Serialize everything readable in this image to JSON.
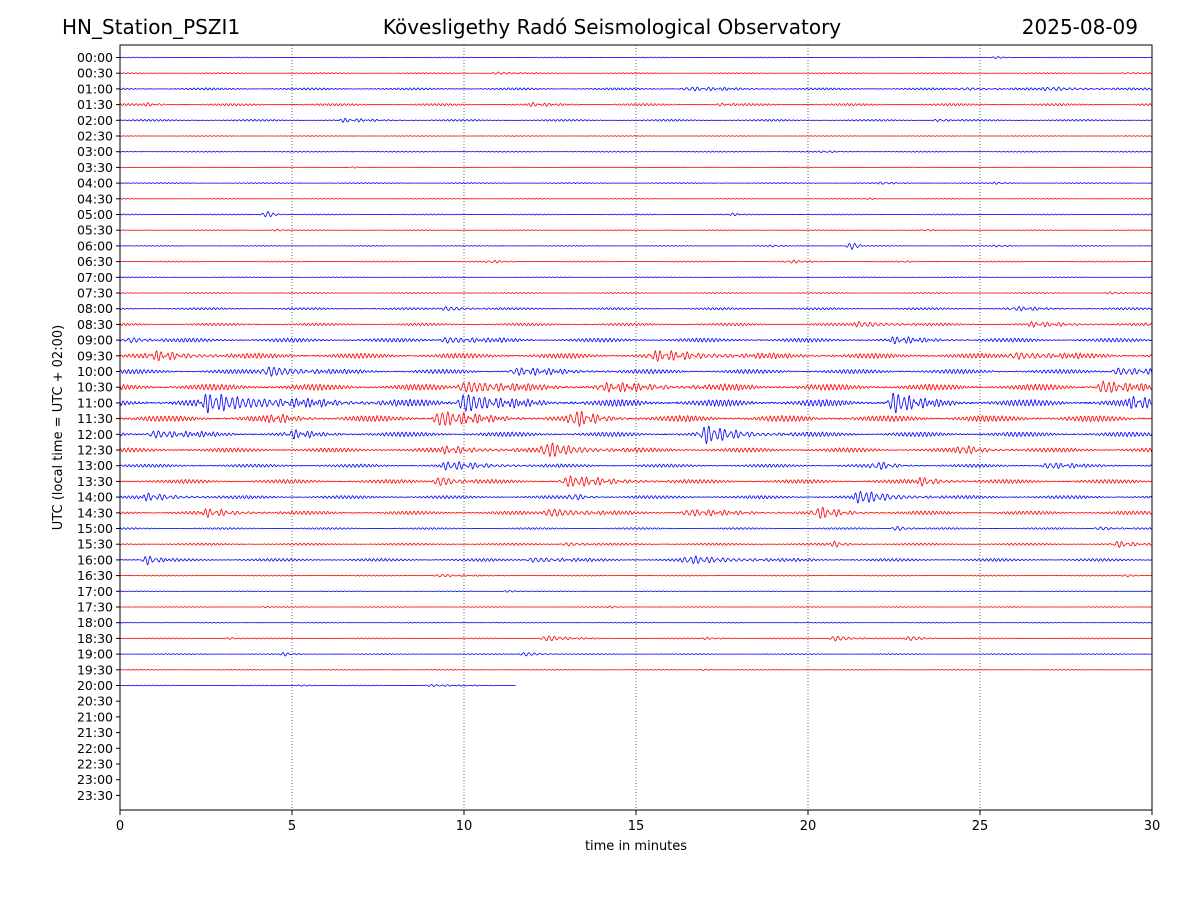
{
  "chart_data": {
    "type": "line",
    "title_left": "HN_Station_PSZI1",
    "title": "Kövesligethy Radó Seismological Observatory",
    "title_right": "2025-08-09",
    "xlabel": "time in minutes",
    "ylabel": "UTC (local time = UTC + 02:00)",
    "xlim": [
      0,
      30
    ],
    "xticks": [
      0,
      5,
      10,
      15,
      20,
      25,
      30
    ],
    "vertical_gridlines": [
      5,
      10,
      15,
      20,
      25
    ],
    "grid_style": "dotted vertical",
    "row_labels": [
      "00:00",
      "00:30",
      "01:00",
      "01:30",
      "02:00",
      "02:30",
      "03:00",
      "03:30",
      "04:00",
      "04:30",
      "05:00",
      "05:30",
      "06:00",
      "06:30",
      "07:00",
      "07:30",
      "08:00",
      "08:30",
      "09:00",
      "09:30",
      "10:00",
      "10:30",
      "11:00",
      "11:30",
      "12:00",
      "12:30",
      "13:00",
      "13:30",
      "14:00",
      "14:30",
      "15:00",
      "15:30",
      "16:00",
      "16:30",
      "17:00",
      "17:30",
      "18:00",
      "18:30",
      "19:00",
      "19:30",
      "20:00",
      "20:30",
      "21:00",
      "21:30",
      "22:00",
      "22:30",
      "23:00",
      "23:30"
    ],
    "trace_colors": [
      "#0000ff",
      "#ff0000"
    ],
    "last_trace_end_minute": 11.5,
    "traces": [
      {
        "row": "00:00",
        "noise": 0.1,
        "events": [
          {
            "t": 25.5,
            "a": 0.35,
            "d": 0.4
          }
        ]
      },
      {
        "row": "00:30",
        "noise": 0.15,
        "events": [
          {
            "t": 11.0,
            "a": 0.4,
            "d": 0.8
          },
          {
            "t": 29.3,
            "a": 0.3,
            "d": 0.3
          }
        ]
      },
      {
        "row": "01:00",
        "noise": 0.3,
        "events": [
          {
            "t": 16.5,
            "a": 0.5,
            "d": 2.0
          },
          {
            "t": 27.0,
            "a": 0.5,
            "d": 2.0
          },
          {
            "t": 24.5,
            "a": 0.4,
            "d": 1.5
          }
        ]
      },
      {
        "row": "01:30",
        "noise": 0.3,
        "events": [
          {
            "t": 0.8,
            "a": 0.4,
            "d": 0.8
          },
          {
            "t": 12.0,
            "a": 0.4,
            "d": 1.0
          },
          {
            "t": 17.5,
            "a": 0.4,
            "d": 0.4
          }
        ]
      },
      {
        "row": "02:00",
        "noise": 0.25,
        "events": [
          {
            "t": 6.5,
            "a": 0.5,
            "d": 1.2
          },
          {
            "t": 23.8,
            "a": 0.4,
            "d": 0.5
          }
        ]
      },
      {
        "row": "02:30",
        "noise": 0.1,
        "events": []
      },
      {
        "row": "03:00",
        "noise": 0.15,
        "events": [
          {
            "t": 20.5,
            "a": 0.3,
            "d": 0.5
          }
        ]
      },
      {
        "row": "03:30",
        "noise": 0.1,
        "events": [
          {
            "t": 6.8,
            "a": 0.25,
            "d": 0.3
          }
        ]
      },
      {
        "row": "04:00",
        "noise": 0.15,
        "events": [
          {
            "t": 22.2,
            "a": 0.35,
            "d": 0.6
          },
          {
            "t": 25.5,
            "a": 0.3,
            "d": 0.4
          }
        ]
      },
      {
        "row": "04:30",
        "noise": 0.1,
        "events": [
          {
            "t": 21.8,
            "a": 0.25,
            "d": 0.3
          }
        ]
      },
      {
        "row": "05:00",
        "noise": 0.15,
        "events": [
          {
            "t": 4.3,
            "a": 1.0,
            "d": 0.3
          },
          {
            "t": 17.8,
            "a": 0.4,
            "d": 0.3
          }
        ]
      },
      {
        "row": "05:30",
        "noise": 0.1,
        "events": [
          {
            "t": 4.6,
            "a": 0.4,
            "d": 0.2
          },
          {
            "t": 23.5,
            "a": 0.3,
            "d": 0.2
          }
        ]
      },
      {
        "row": "06:00",
        "noise": 0.1,
        "events": [
          {
            "t": 19.0,
            "a": 0.35,
            "d": 0.3
          },
          {
            "t": 21.3,
            "a": 1.2,
            "d": 0.1
          },
          {
            "t": 25.5,
            "a": 0.3,
            "d": 0.5
          }
        ]
      },
      {
        "row": "06:30",
        "noise": 0.15,
        "events": [
          {
            "t": 10.8,
            "a": 0.45,
            "d": 0.6
          },
          {
            "t": 19.5,
            "a": 0.45,
            "d": 0.8
          },
          {
            "t": 22.8,
            "a": 0.3,
            "d": 0.2
          }
        ]
      },
      {
        "row": "07:00",
        "noise": 0.12,
        "events": []
      },
      {
        "row": "07:30",
        "noise": 0.15,
        "events": [
          {
            "t": 28.8,
            "a": 0.35,
            "d": 0.5
          }
        ]
      },
      {
        "row": "08:00",
        "noise": 0.3,
        "events": [
          {
            "t": 9.5,
            "a": 0.6,
            "d": 1.0
          },
          {
            "t": 26.0,
            "a": 0.5,
            "d": 1.5
          }
        ]
      },
      {
        "row": "08:30",
        "noise": 0.35,
        "events": [
          {
            "t": 21.5,
            "a": 0.8,
            "d": 1.5
          },
          {
            "t": 26.5,
            "a": 0.6,
            "d": 2.0
          },
          {
            "t": 30.0,
            "a": 0.6,
            "d": 0.5
          }
        ]
      },
      {
        "row": "09:00",
        "noise": 0.55,
        "events": [
          {
            "t": 9.5,
            "a": 0.9,
            "d": 1.5
          },
          {
            "t": 22.5,
            "a": 0.8,
            "d": 1.5
          },
          {
            "t": 0.3,
            "a": 0.8,
            "d": 0.8
          }
        ]
      },
      {
        "row": "09:30",
        "noise": 0.7,
        "events": [
          {
            "t": 1.0,
            "a": 1.1,
            "d": 2.0
          },
          {
            "t": 15.5,
            "a": 1.2,
            "d": 3.0
          },
          {
            "t": 26.0,
            "a": 1.0,
            "d": 2.0
          }
        ]
      },
      {
        "row": "10:00",
        "noise": 0.6,
        "events": [
          {
            "t": 4.3,
            "a": 1.5,
            "d": 1.5
          },
          {
            "t": 11.5,
            "a": 1.0,
            "d": 2.0
          },
          {
            "t": 29.0,
            "a": 1.0,
            "d": 2.0
          }
        ]
      },
      {
        "row": "10:30",
        "noise": 0.85,
        "events": [
          {
            "t": 10.0,
            "a": 1.7,
            "d": 2.0
          },
          {
            "t": 28.6,
            "a": 2.0,
            "d": 1.0
          },
          {
            "t": 14.0,
            "a": 1.0,
            "d": 3.0
          }
        ]
      },
      {
        "row": "11:00",
        "noise": 0.95,
        "events": [
          {
            "t": 2.5,
            "a": 2.3,
            "d": 3.5
          },
          {
            "t": 10.0,
            "a": 2.8,
            "d": 1.5
          },
          {
            "t": 22.5,
            "a": 3.0,
            "d": 1.0
          },
          {
            "t": 29.5,
            "a": 1.5,
            "d": 1.0
          }
        ]
      },
      {
        "row": "11:30",
        "noise": 0.85,
        "events": [
          {
            "t": 9.3,
            "a": 2.2,
            "d": 1.5
          },
          {
            "t": 13.2,
            "a": 2.2,
            "d": 1.0
          },
          {
            "t": 4.5,
            "a": 1.0,
            "d": 1.0
          }
        ]
      },
      {
        "row": "12:00",
        "noise": 0.65,
        "events": [
          {
            "t": 17.0,
            "a": 2.4,
            "d": 1.5
          },
          {
            "t": 1.0,
            "a": 1.1,
            "d": 1.5
          },
          {
            "t": 5.0,
            "a": 1.0,
            "d": 1.0
          }
        ]
      },
      {
        "row": "12:30",
        "noise": 0.6,
        "events": [
          {
            "t": 12.4,
            "a": 2.2,
            "d": 1.5
          },
          {
            "t": 24.5,
            "a": 1.2,
            "d": 1.0
          },
          {
            "t": 9.5,
            "a": 0.9,
            "d": 2.0
          }
        ]
      },
      {
        "row": "13:00",
        "noise": 0.45,
        "events": [
          {
            "t": 9.5,
            "a": 1.1,
            "d": 2.0
          },
          {
            "t": 22.0,
            "a": 1.1,
            "d": 0.8
          },
          {
            "t": 27.0,
            "a": 0.9,
            "d": 1.0
          }
        ]
      },
      {
        "row": "13:30",
        "noise": 0.55,
        "events": [
          {
            "t": 9.3,
            "a": 1.4,
            "d": 0.8
          },
          {
            "t": 13.0,
            "a": 1.5,
            "d": 2.0
          },
          {
            "t": 23.3,
            "a": 1.1,
            "d": 1.0
          }
        ]
      },
      {
        "row": "14:00",
        "noise": 0.45,
        "events": [
          {
            "t": 0.8,
            "a": 0.9,
            "d": 1.5
          },
          {
            "t": 21.5,
            "a": 1.8,
            "d": 1.5
          },
          {
            "t": 13.2,
            "a": 1.0,
            "d": 0.5
          }
        ]
      },
      {
        "row": "14:30",
        "noise": 0.5,
        "events": [
          {
            "t": 2.5,
            "a": 1.0,
            "d": 1.5
          },
          {
            "t": 12.5,
            "a": 1.2,
            "d": 1.5
          },
          {
            "t": 20.3,
            "a": 1.6,
            "d": 1.0
          },
          {
            "t": 16.5,
            "a": 0.9,
            "d": 2.0
          }
        ]
      },
      {
        "row": "15:00",
        "noise": 0.25,
        "events": [
          {
            "t": 22.6,
            "a": 0.7,
            "d": 0.5
          },
          {
            "t": 28.5,
            "a": 0.5,
            "d": 0.8
          }
        ]
      },
      {
        "row": "15:30",
        "noise": 0.3,
        "events": [
          {
            "t": 20.8,
            "a": 0.8,
            "d": 0.5
          },
          {
            "t": 29.0,
            "a": 0.8,
            "d": 0.8
          },
          {
            "t": 13.0,
            "a": 0.5,
            "d": 1.0
          }
        ]
      },
      {
        "row": "16:00",
        "noise": 0.4,
        "events": [
          {
            "t": 0.8,
            "a": 1.3,
            "d": 0.5
          },
          {
            "t": 16.5,
            "a": 1.0,
            "d": 2.5
          },
          {
            "t": 12.0,
            "a": 0.7,
            "d": 1.5
          }
        ]
      },
      {
        "row": "16:30",
        "noise": 0.15,
        "events": [
          {
            "t": 9.3,
            "a": 0.4,
            "d": 1.0
          },
          {
            "t": 29.3,
            "a": 0.4,
            "d": 0.3
          }
        ]
      },
      {
        "row": "17:00",
        "noise": 0.1,
        "events": [
          {
            "t": 11.3,
            "a": 0.3,
            "d": 0.5
          }
        ]
      },
      {
        "row": "17:30",
        "noise": 0.1,
        "events": [
          {
            "t": 14.3,
            "a": 0.3,
            "d": 0.2
          },
          {
            "t": 4.2,
            "a": 0.2,
            "d": 0.2
          }
        ]
      },
      {
        "row": "18:00",
        "noise": 0.1,
        "events": []
      },
      {
        "row": "18:30",
        "noise": 0.15,
        "events": [
          {
            "t": 12.4,
            "a": 0.8,
            "d": 1.0
          },
          {
            "t": 20.8,
            "a": 0.8,
            "d": 0.7
          },
          {
            "t": 23.0,
            "a": 0.7,
            "d": 0.6
          },
          {
            "t": 17.0,
            "a": 0.3,
            "d": 1.0
          },
          {
            "t": 3.2,
            "a": 0.3,
            "d": 0.4
          }
        ]
      },
      {
        "row": "19:00",
        "noise": 0.12,
        "events": [
          {
            "t": 4.8,
            "a": 0.5,
            "d": 0.4
          },
          {
            "t": 11.8,
            "a": 0.6,
            "d": 0.6
          }
        ]
      },
      {
        "row": "19:30",
        "noise": 0.1,
        "events": [
          {
            "t": 17.0,
            "a": 0.25,
            "d": 0.2
          }
        ]
      },
      {
        "row": "20:00",
        "noise": 0.12,
        "events": [
          {
            "t": 9.0,
            "a": 0.3,
            "d": 1.5
          },
          {
            "t": 5.3,
            "a": 0.25,
            "d": 0.6
          }
        ]
      }
    ]
  }
}
